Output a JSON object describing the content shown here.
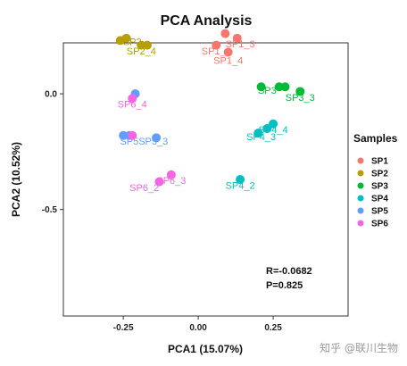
{
  "chart_data": {
    "type": "scatter",
    "title": "PCA Analysis",
    "xlabel": "PCA1 (15.07%)",
    "ylabel": "PCA2 (10.52%)",
    "xlim": [
      -0.45,
      0.5
    ],
    "ylim": [
      -0.96,
      0.22
    ],
    "xticks": [
      -0.25,
      0.0,
      0.25
    ],
    "xtick_labels": [
      "-0.25",
      "0.00",
      "0.25"
    ],
    "yticks": [
      0.0,
      -0.5
    ],
    "ytick_labels": [
      "0.0",
      "-0.5"
    ],
    "grid": false,
    "legend": {
      "title": "Samples",
      "position": "right"
    },
    "series": [
      {
        "name": "SP1",
        "color": "#F8766D",
        "points": [
          {
            "x": 0.06,
            "y": 0.21,
            "label": ""
          },
          {
            "x": 0.09,
            "y": 0.26,
            "label": ""
          },
          {
            "x": 0.13,
            "y": 0.24,
            "label": "SP1_3"
          },
          {
            "x": 0.1,
            "y": 0.18,
            "label": "SP1_4"
          }
        ],
        "group_labels": [
          "SP1_1",
          "SP1_3",
          "SP1_4"
        ]
      },
      {
        "name": "SP2",
        "color": "#B79F00",
        "points": [
          {
            "x": -0.26,
            "y": 0.23,
            "label": ""
          },
          {
            "x": -0.24,
            "y": 0.24,
            "label": ""
          },
          {
            "x": -0.19,
            "y": 0.21,
            "label": ""
          },
          {
            "x": -0.17,
            "y": 0.21,
            "label": ""
          }
        ],
        "group_labels": [
          "SP2",
          "SP2_4"
        ]
      },
      {
        "name": "SP3",
        "color": "#00BA38",
        "points": [
          {
            "x": 0.21,
            "y": 0.03,
            "label": ""
          },
          {
            "x": 0.27,
            "y": 0.03,
            "label": ""
          },
          {
            "x": 0.29,
            "y": 0.03,
            "label": ""
          },
          {
            "x": 0.34,
            "y": 0.01,
            "label": "SP3_3"
          }
        ],
        "group_labels": [
          "SP3",
          "SP3_3"
        ]
      },
      {
        "name": "SP4",
        "color": "#00BFC4",
        "points": [
          {
            "x": 0.2,
            "y": -0.17,
            "label": ""
          },
          {
            "x": 0.23,
            "y": -0.15,
            "label": ""
          },
          {
            "x": 0.25,
            "y": -0.13,
            "label": ""
          },
          {
            "x": 0.14,
            "y": -0.37,
            "label": "SP4_2"
          }
        ],
        "group_labels": [
          "SP4_3",
          "SP4_4",
          "SP4_2"
        ]
      },
      {
        "name": "SP5",
        "color": "#619CFF",
        "points": [
          {
            "x": -0.25,
            "y": -0.18,
            "label": ""
          },
          {
            "x": -0.23,
            "y": -0.18,
            "label": ""
          },
          {
            "x": -0.21,
            "y": -0.0,
            "label": ""
          },
          {
            "x": -0.14,
            "y": -0.19,
            "label": "SP5_3"
          }
        ],
        "group_labels": [
          "SP5",
          "SP5_3"
        ]
      },
      {
        "name": "SP6",
        "color": "#F564E3",
        "points": [
          {
            "x": -0.22,
            "y": -0.18,
            "label": ""
          },
          {
            "x": -0.22,
            "y": -0.02,
            "label": "SP6_4"
          },
          {
            "x": -0.13,
            "y": -0.38,
            "label": "SP6_2"
          },
          {
            "x": -0.09,
            "y": -0.35,
            "label": "SP6_3"
          }
        ],
        "group_labels": [
          "SP6_4",
          "SP6_2",
          "SP6_3"
        ]
      }
    ],
    "annotations": [
      "R=-0.0682",
      "P=0.825"
    ]
  },
  "watermark": "知乎 @联川生物"
}
